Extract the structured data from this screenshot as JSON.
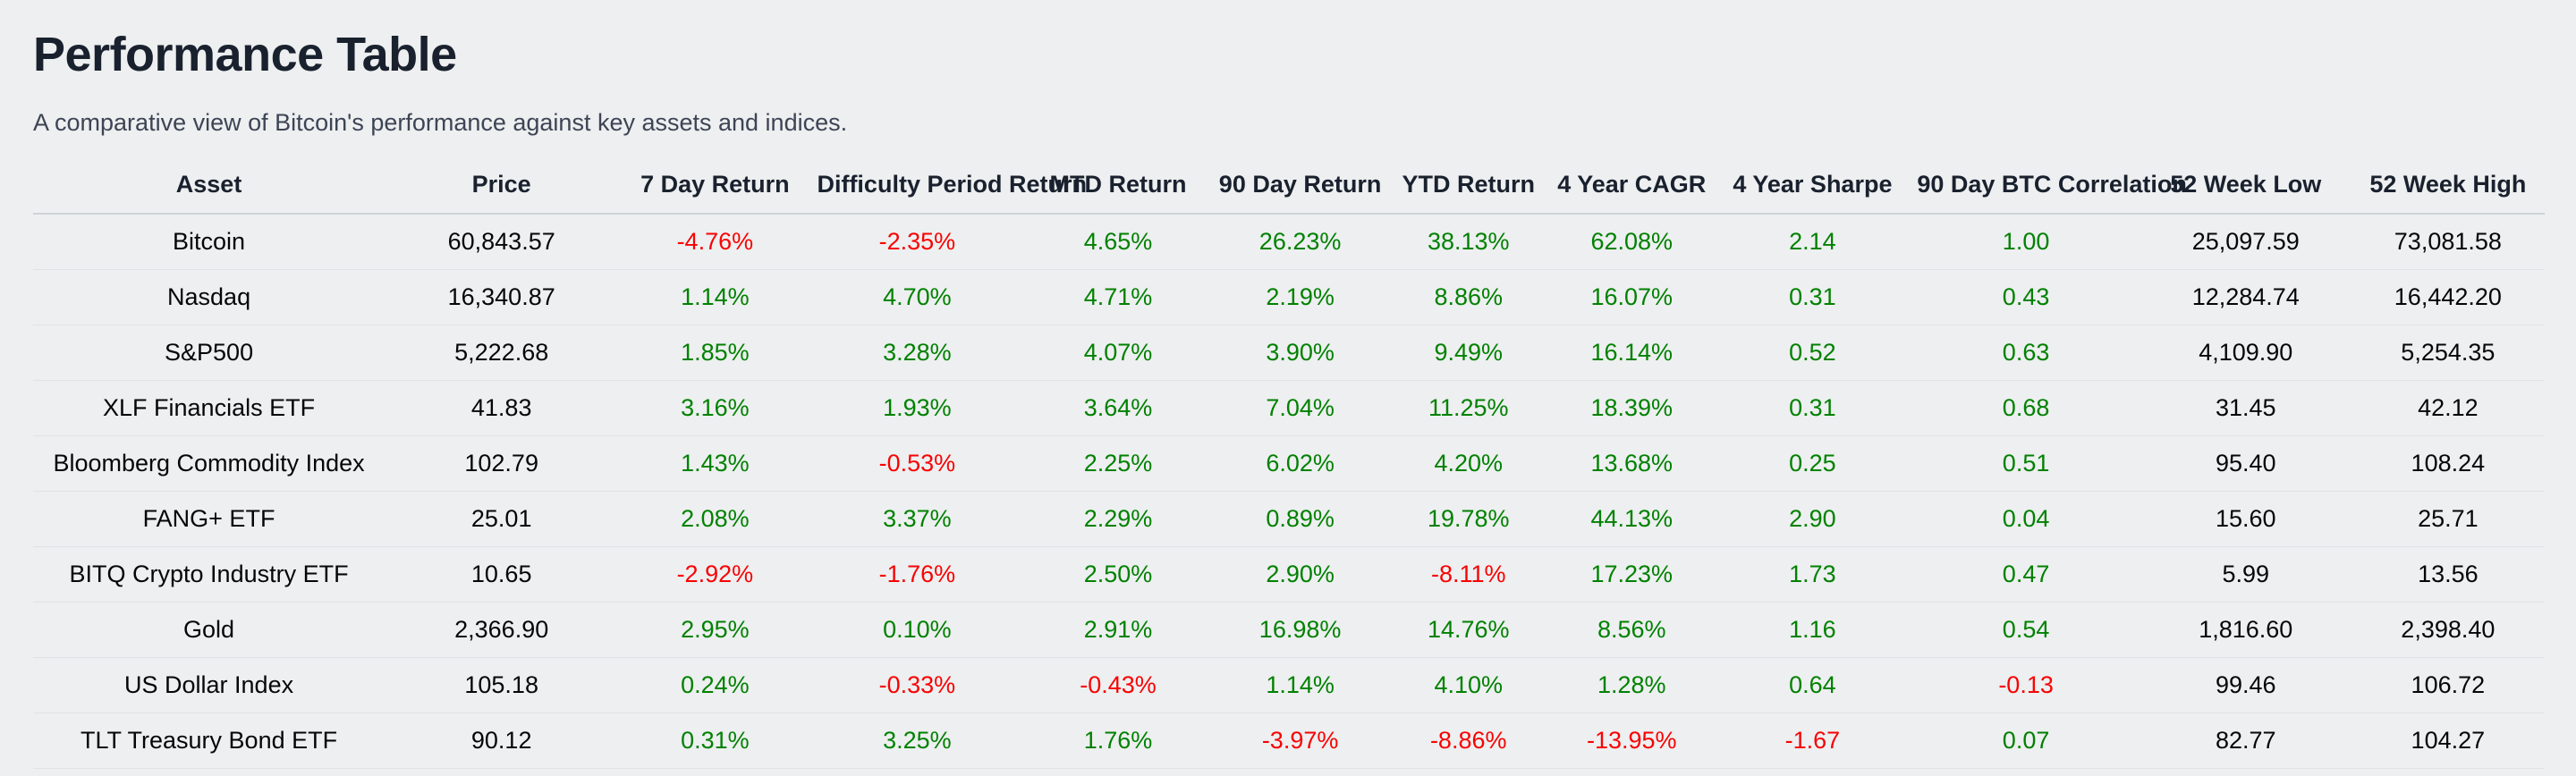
{
  "header": {
    "title": "Performance Table",
    "subtitle": "A comparative view of Bitcoin's performance against key assets and indices."
  },
  "colors": {
    "background": "#edeff0",
    "heading_text": "#1a212e",
    "subtitle_text": "#3d4454",
    "body_text": "#060606",
    "positive_value": "#018101",
    "negative_value": "#f80303",
    "header_border": "#ced3d7",
    "row_border": "#e0e3e5"
  },
  "chart_data": {
    "type": "table",
    "title": "Performance Table",
    "columns": [
      "Asset",
      "Price",
      "7 Day Return",
      "Difficulty Period Return",
      "MTD Return",
      "90 Day Return",
      "YTD Return",
      "4 Year CAGR",
      "4 Year Sharpe",
      "90 Day BTC Correlation",
      "52 Week Low",
      "52 Week High"
    ],
    "col_widths_pct": [
      14.0,
      9.3,
      7.7,
      8.4,
      7.6,
      6.9,
      6.5,
      6.5,
      7.9,
      9.1,
      8.4,
      7.7
    ],
    "rows": [
      {
        "cells": [
          {
            "text": "Bitcoin",
            "tone": "neutral"
          },
          {
            "text": "60,843.57",
            "tone": "neutral"
          },
          {
            "text": "-4.76%",
            "tone": "negative"
          },
          {
            "text": "-2.35%",
            "tone": "negative"
          },
          {
            "text": "4.65%",
            "tone": "positive"
          },
          {
            "text": "26.23%",
            "tone": "positive"
          },
          {
            "text": "38.13%",
            "tone": "positive"
          },
          {
            "text": "62.08%",
            "tone": "positive"
          },
          {
            "text": "2.14",
            "tone": "positive"
          },
          {
            "text": "1.00",
            "tone": "positive"
          },
          {
            "text": "25,097.59",
            "tone": "neutral"
          },
          {
            "text": "73,081.58",
            "tone": "neutral"
          }
        ]
      },
      {
        "cells": [
          {
            "text": "Nasdaq",
            "tone": "neutral"
          },
          {
            "text": "16,340.87",
            "tone": "neutral"
          },
          {
            "text": "1.14%",
            "tone": "positive"
          },
          {
            "text": "4.70%",
            "tone": "positive"
          },
          {
            "text": "4.71%",
            "tone": "positive"
          },
          {
            "text": "2.19%",
            "tone": "positive"
          },
          {
            "text": "8.86%",
            "tone": "positive"
          },
          {
            "text": "16.07%",
            "tone": "positive"
          },
          {
            "text": "0.31",
            "tone": "positive"
          },
          {
            "text": "0.43",
            "tone": "positive"
          },
          {
            "text": "12,284.74",
            "tone": "neutral"
          },
          {
            "text": "16,442.20",
            "tone": "neutral"
          }
        ]
      },
      {
        "cells": [
          {
            "text": "S&P500",
            "tone": "neutral"
          },
          {
            "text": "5,222.68",
            "tone": "neutral"
          },
          {
            "text": "1.85%",
            "tone": "positive"
          },
          {
            "text": "3.28%",
            "tone": "positive"
          },
          {
            "text": "4.07%",
            "tone": "positive"
          },
          {
            "text": "3.90%",
            "tone": "positive"
          },
          {
            "text": "9.49%",
            "tone": "positive"
          },
          {
            "text": "16.14%",
            "tone": "positive"
          },
          {
            "text": "0.52",
            "tone": "positive"
          },
          {
            "text": "0.63",
            "tone": "positive"
          },
          {
            "text": "4,109.90",
            "tone": "neutral"
          },
          {
            "text": "5,254.35",
            "tone": "neutral"
          }
        ]
      },
      {
        "cells": [
          {
            "text": "XLF Financials ETF",
            "tone": "neutral"
          },
          {
            "text": "41.83",
            "tone": "neutral"
          },
          {
            "text": "3.16%",
            "tone": "positive"
          },
          {
            "text": "1.93%",
            "tone": "positive"
          },
          {
            "text": "3.64%",
            "tone": "positive"
          },
          {
            "text": "7.04%",
            "tone": "positive"
          },
          {
            "text": "11.25%",
            "tone": "positive"
          },
          {
            "text": "18.39%",
            "tone": "positive"
          },
          {
            "text": "0.31",
            "tone": "positive"
          },
          {
            "text": "0.68",
            "tone": "positive"
          },
          {
            "text": "31.45",
            "tone": "neutral"
          },
          {
            "text": "42.12",
            "tone": "neutral"
          }
        ]
      },
      {
        "cells": [
          {
            "text": "Bloomberg Commodity Index",
            "tone": "neutral"
          },
          {
            "text": "102.79",
            "tone": "neutral"
          },
          {
            "text": "1.43%",
            "tone": "positive"
          },
          {
            "text": "-0.53%",
            "tone": "negative"
          },
          {
            "text": "2.25%",
            "tone": "positive"
          },
          {
            "text": "6.02%",
            "tone": "positive"
          },
          {
            "text": "4.20%",
            "tone": "positive"
          },
          {
            "text": "13.68%",
            "tone": "positive"
          },
          {
            "text": "0.25",
            "tone": "positive"
          },
          {
            "text": "0.51",
            "tone": "positive"
          },
          {
            "text": "95.40",
            "tone": "neutral"
          },
          {
            "text": "108.24",
            "tone": "neutral"
          }
        ]
      },
      {
        "cells": [
          {
            "text": "FANG+ ETF",
            "tone": "neutral"
          },
          {
            "text": "25.01",
            "tone": "neutral"
          },
          {
            "text": "2.08%",
            "tone": "positive"
          },
          {
            "text": "3.37%",
            "tone": "positive"
          },
          {
            "text": "2.29%",
            "tone": "positive"
          },
          {
            "text": "0.89%",
            "tone": "positive"
          },
          {
            "text": "19.78%",
            "tone": "positive"
          },
          {
            "text": "44.13%",
            "tone": "positive"
          },
          {
            "text": "2.90",
            "tone": "positive"
          },
          {
            "text": "0.04",
            "tone": "positive"
          },
          {
            "text": "15.60",
            "tone": "neutral"
          },
          {
            "text": "25.71",
            "tone": "neutral"
          }
        ]
      },
      {
        "cells": [
          {
            "text": "BITQ Crypto Industry ETF",
            "tone": "neutral"
          },
          {
            "text": "10.65",
            "tone": "neutral"
          },
          {
            "text": "-2.92%",
            "tone": "negative"
          },
          {
            "text": "-1.76%",
            "tone": "negative"
          },
          {
            "text": "2.50%",
            "tone": "positive"
          },
          {
            "text": "2.90%",
            "tone": "positive"
          },
          {
            "text": "-8.11%",
            "tone": "negative"
          },
          {
            "text": "17.23%",
            "tone": "positive"
          },
          {
            "text": "1.73",
            "tone": "positive"
          },
          {
            "text": "0.47",
            "tone": "positive"
          },
          {
            "text": "5.99",
            "tone": "neutral"
          },
          {
            "text": "13.56",
            "tone": "neutral"
          }
        ]
      },
      {
        "cells": [
          {
            "text": "Gold",
            "tone": "neutral"
          },
          {
            "text": "2,366.90",
            "tone": "neutral"
          },
          {
            "text": "2.95%",
            "tone": "positive"
          },
          {
            "text": "0.10%",
            "tone": "positive"
          },
          {
            "text": "2.91%",
            "tone": "positive"
          },
          {
            "text": "16.98%",
            "tone": "positive"
          },
          {
            "text": "14.76%",
            "tone": "positive"
          },
          {
            "text": "8.56%",
            "tone": "positive"
          },
          {
            "text": "1.16",
            "tone": "positive"
          },
          {
            "text": "0.54",
            "tone": "positive"
          },
          {
            "text": "1,816.60",
            "tone": "neutral"
          },
          {
            "text": "2,398.40",
            "tone": "neutral"
          }
        ]
      },
      {
        "cells": [
          {
            "text": "US Dollar Index",
            "tone": "neutral"
          },
          {
            "text": "105.18",
            "tone": "neutral"
          },
          {
            "text": "0.24%",
            "tone": "positive"
          },
          {
            "text": "-0.33%",
            "tone": "negative"
          },
          {
            "text": "-0.43%",
            "tone": "negative"
          },
          {
            "text": "1.14%",
            "tone": "positive"
          },
          {
            "text": "4.10%",
            "tone": "positive"
          },
          {
            "text": "1.28%",
            "tone": "positive"
          },
          {
            "text": "0.64",
            "tone": "positive"
          },
          {
            "text": "-0.13",
            "tone": "negative"
          },
          {
            "text": "99.46",
            "tone": "neutral"
          },
          {
            "text": "106.72",
            "tone": "neutral"
          }
        ]
      },
      {
        "cells": [
          {
            "text": "TLT Treasury Bond ETF",
            "tone": "neutral"
          },
          {
            "text": "90.12",
            "tone": "neutral"
          },
          {
            "text": "0.31%",
            "tone": "positive"
          },
          {
            "text": "3.25%",
            "tone": "positive"
          },
          {
            "text": "1.76%",
            "tone": "positive"
          },
          {
            "text": "-3.97%",
            "tone": "negative"
          },
          {
            "text": "-8.86%",
            "tone": "negative"
          },
          {
            "text": "-13.95%",
            "tone": "negative"
          },
          {
            "text": "-1.67",
            "tone": "negative"
          },
          {
            "text": "0.07",
            "tone": "positive"
          },
          {
            "text": "82.77",
            "tone": "neutral"
          },
          {
            "text": "104.27",
            "tone": "neutral"
          }
        ]
      }
    ]
  }
}
